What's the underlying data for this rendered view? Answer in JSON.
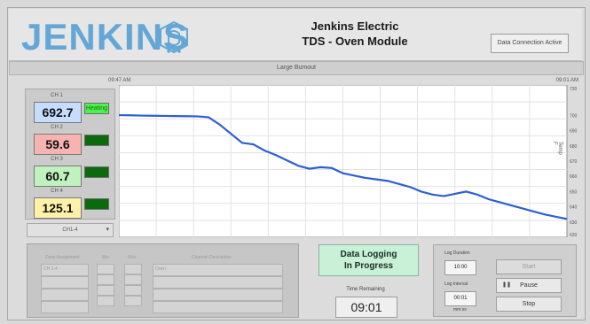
{
  "header": {
    "logo_text": "JENKINS",
    "title_line1": "Jenkins Electric",
    "title_line2": "TDS - Oven Module",
    "data_button": "Data Connection Active"
  },
  "strip_label": "Large Bumout",
  "channels": [
    {
      "label": "CH 1",
      "value": "692.7",
      "status": "on",
      "status_text": "Heating",
      "color": "#c7ddff"
    },
    {
      "label": "CH 2",
      "value": "59.6",
      "status": "off",
      "status_text": "",
      "color": "#f7b2b2"
    },
    {
      "label": "CH 3",
      "value": "60.7",
      "status": "off",
      "status_text": "",
      "color": "#bff2bf"
    },
    {
      "label": "CH 4",
      "value": "125.1",
      "status": "off",
      "status_text": "",
      "color": "#fff2a8"
    }
  ],
  "dropdown": {
    "value": "CH1-4"
  },
  "chart_data": {
    "type": "line",
    "x_start_label": "09:47 AM",
    "x_end_label": "09:01 AM",
    "ylabel": "Temp F",
    "ylim": [
      620,
      720
    ],
    "y_ticks": [
      720,
      700,
      690,
      680,
      670,
      660,
      650,
      640,
      630,
      620
    ],
    "series": [
      {
        "values": [
          700.2,
          700.1,
          699.9,
          699.8,
          699.7,
          699.6,
          699.5,
          699.4,
          698.8,
          694.0,
          688.0,
          682.0,
          681.0,
          677.0,
          674.0,
          670.5,
          667.0,
          665.0,
          666.0,
          665.5,
          662.0,
          660.5,
          659.0,
          658.0,
          657.0,
          655.0,
          653.0,
          650.0,
          648.0,
          647.0,
          648.5,
          650.0,
          648.0,
          645.0,
          643.0,
          641.0,
          639.0,
          637.0,
          635.0,
          633.5,
          632.0
        ]
      }
    ]
  },
  "bottom": {
    "left_headers": [
      "Zone Assignment",
      "Min",
      "Max",
      "Channel Description"
    ],
    "left_row1": [
      "CH 1-4",
      "",
      "",
      "Oven"
    ]
  },
  "status_text": {
    "line1": "Data Logging",
    "line2": "In Progress"
  },
  "time_label": "Time Remaining",
  "time_value": "09:01",
  "log": {
    "duration_label": "Log Duration",
    "duration_value": "10:00",
    "interval_label": "Log Interval",
    "interval_value": "00:01",
    "unit_label": "mm:ss",
    "buttons": {
      "start": "Start",
      "pause": "Pause",
      "stop": "Stop"
    }
  },
  "colors": {
    "accent": "#64a7d7",
    "line": "#2d5fd3"
  }
}
